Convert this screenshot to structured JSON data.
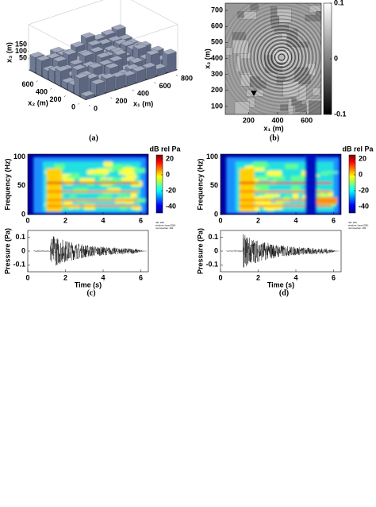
{
  "panels": [
    {
      "label": "(a)",
      "x1_label": "x₁ (m)",
      "x2_label": "x₂ (m)",
      "x3_label": "x₃ (m)",
      "x1_lim": [
        0,
        800
      ],
      "x1_ticks": [
        0,
        200,
        400,
        600,
        800
      ],
      "x2_lim": [
        0,
        800
      ],
      "x2_ticks": [
        0,
        200,
        400,
        600
      ],
      "x3_lim": [
        0,
        150
      ],
      "x3_ticks": [
        50,
        100,
        150
      ]
    },
    {
      "label": "(b)",
      "x_label": "x₁ (m)",
      "y_label": "x₂ (m)",
      "x_lim": [
        40,
        700
      ],
      "x_ticks": [
        200,
        400,
        600
      ],
      "y_lim": [
        50,
        745
      ],
      "y_ticks": [
        100,
        200,
        300,
        400,
        500,
        600,
        700
      ],
      "colorbar_lim": [
        -0.1,
        0.1
      ],
      "colorbar_ticks": [
        0.1,
        0,
        -0.1
      ]
    },
    {
      "label": "(c)",
      "spectrogram": {
        "y_label": "Frequency (Hz)",
        "colorbar_title": "dB rel Pa",
        "x_lim": [
          0,
          6.4
        ],
        "x_ticks": [
          0,
          2,
          4,
          6
        ],
        "y_lim": [
          0,
          105
        ],
        "y_ticks": [
          0,
          50,
          100
        ],
        "colorbar_lim": [
          -48,
          25
        ],
        "colorbar_ticks": [
          20,
          0,
          -20,
          -40
        ],
        "notes": [
          "nfft: 256",
          "window: hann(256)",
          "numoverlap: 192"
        ]
      },
      "waveform": {
        "x_label": "Time (s)",
        "y_label": "Pressure (Pa)",
        "x_lim": [
          0,
          6.4
        ],
        "x_ticks": [
          0,
          2,
          4,
          6
        ],
        "y_lim": [
          -0.15,
          0.15
        ],
        "y_ticks": [
          -0.1,
          0,
          0.1
        ]
      }
    },
    {
      "label": "(d)",
      "spectrogram": {
        "y_label": "Frequency (Hz)",
        "colorbar_title": "dB rel Pa",
        "x_lim": [
          0,
          6.4
        ],
        "x_ticks": [
          0,
          2,
          4,
          6
        ],
        "y_lim": [
          0,
          105
        ],
        "y_ticks": [
          0,
          50,
          100
        ],
        "colorbar_lim": [
          -48,
          25
        ],
        "colorbar_ticks": [
          20,
          0,
          -20,
          -40
        ],
        "notes": [
          "nfft: 256",
          "window: hann(256)",
          "numoverlap: 192"
        ]
      },
      "waveform": {
        "x_label": "Time (s)",
        "y_label": "Pressure (Pa)",
        "x_lim": [
          0,
          6.4
        ],
        "x_ticks": [
          0,
          2,
          4,
          6
        ],
        "y_lim": [
          -0.15,
          0.15
        ],
        "y_ticks": [
          -0.1,
          0,
          0.1
        ]
      }
    }
  ]
}
